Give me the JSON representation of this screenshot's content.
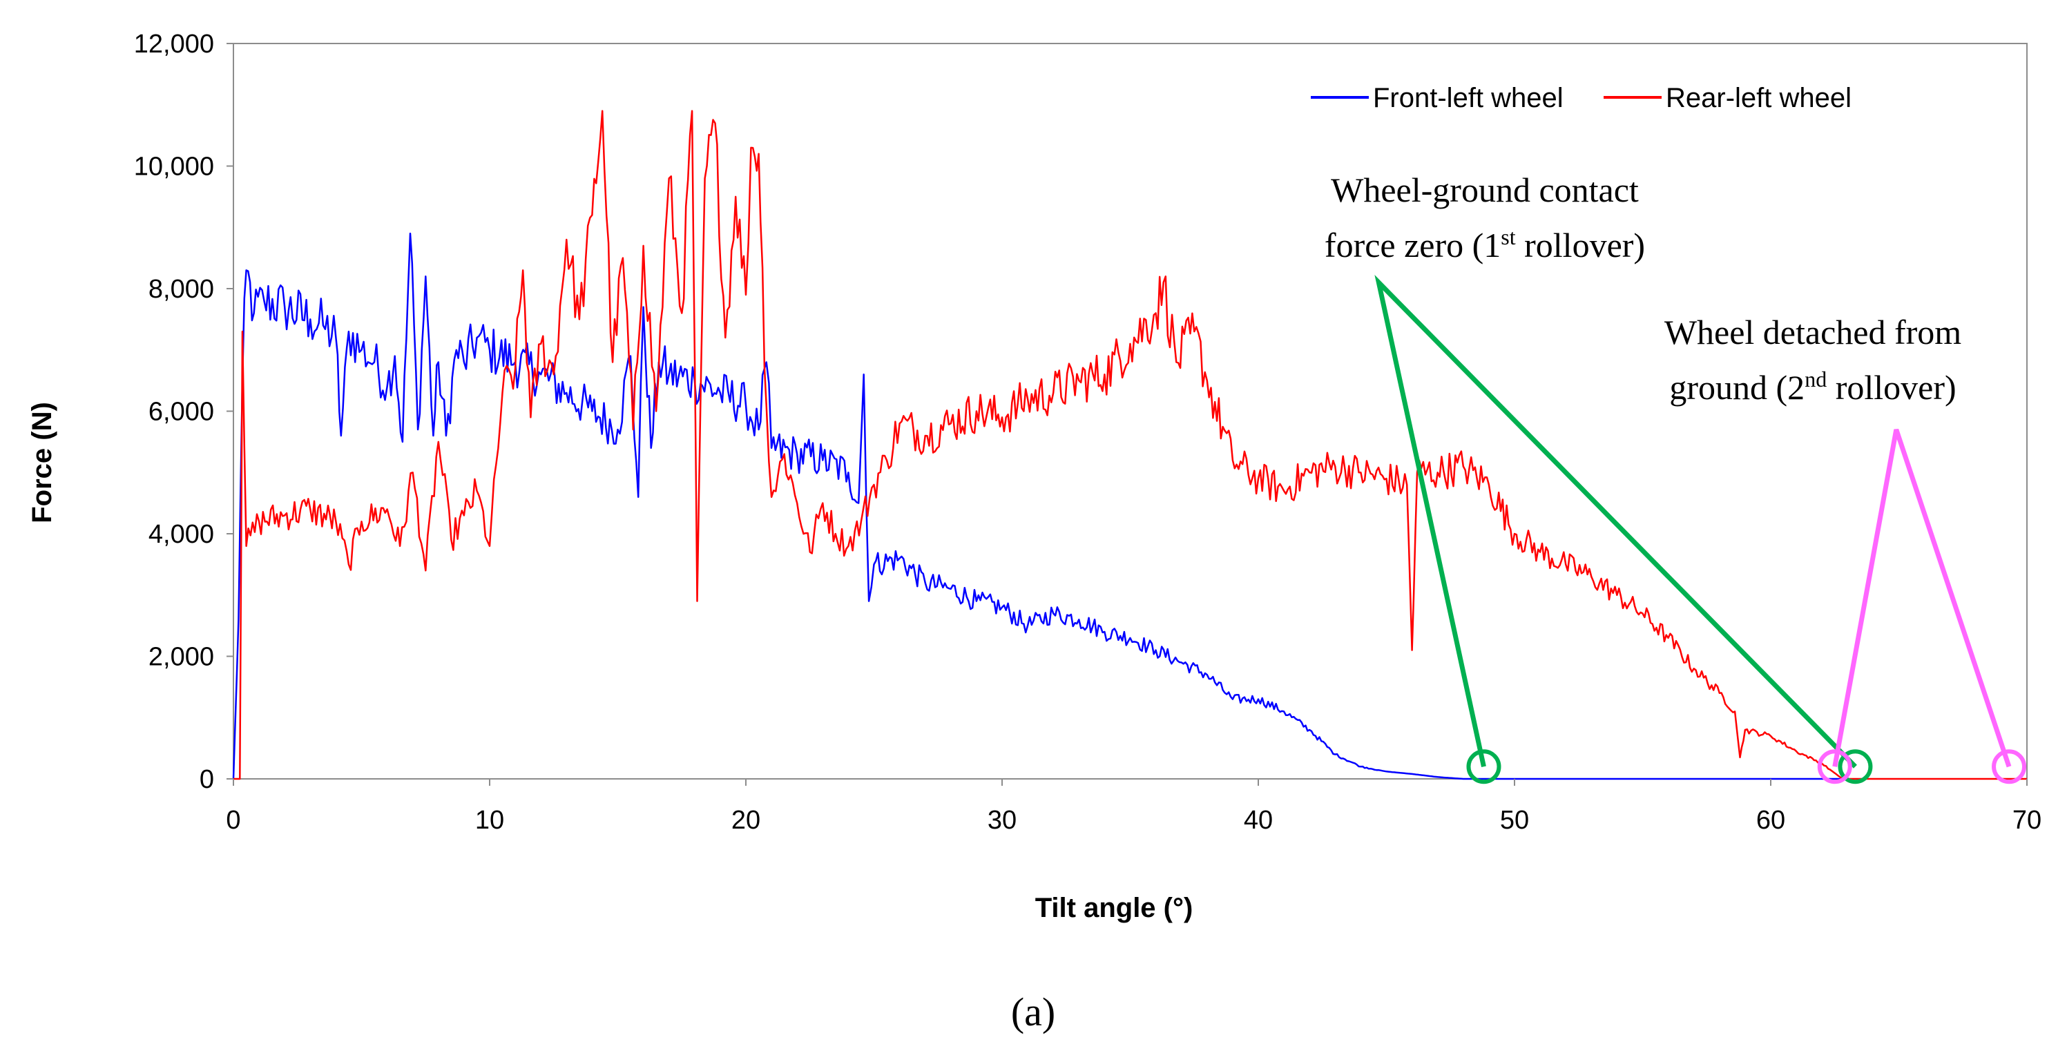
{
  "chart_data": {
    "type": "line",
    "title": "",
    "xlabel": "Tilt angle (°)",
    "ylabel": "Force (N)",
    "xlim": [
      0,
      70
    ],
    "ylim": [
      0,
      12000
    ],
    "x_ticks": [
      "0",
      "10",
      "20",
      "30",
      "40",
      "50",
      "60",
      "70"
    ],
    "y_ticks": [
      "0",
      "2,000",
      "4,000",
      "6,000",
      "8,000",
      "10,000",
      "12,000"
    ],
    "grid": false,
    "legend_position": "top-right",
    "series": [
      {
        "name": "Front-left wheel",
        "color": "#0000ff",
        "points": [
          [
            0,
            0
          ],
          [
            0.2,
            2600
          ],
          [
            0.35,
            6500
          ],
          [
            0.5,
            8300
          ],
          [
            0.8,
            7600
          ],
          [
            1.2,
            7800
          ],
          [
            2,
            7700
          ],
          [
            3,
            7500
          ],
          [
            3.5,
            7400
          ],
          [
            4,
            7200
          ],
          [
            4.2,
            5600
          ],
          [
            4.5,
            7300
          ],
          [
            5,
            7000
          ],
          [
            5.5,
            6800
          ],
          [
            6,
            6400
          ],
          [
            6.3,
            6900
          ],
          [
            6.6,
            5500
          ],
          [
            6.9,
            8900
          ],
          [
            7.2,
            5700
          ],
          [
            7.5,
            8200
          ],
          [
            7.8,
            5600
          ],
          [
            8,
            6800
          ],
          [
            8.3,
            5600
          ],
          [
            8.7,
            7000
          ],
          [
            9,
            6800
          ],
          [
            9.5,
            7200
          ],
          [
            10,
            7000
          ],
          [
            11,
            6800
          ],
          [
            12,
            6600
          ],
          [
            13,
            6300
          ],
          [
            14,
            6000
          ],
          [
            15,
            5700
          ],
          [
            15.5,
            6900
          ],
          [
            15.8,
            4600
          ],
          [
            16,
            7700
          ],
          [
            16.3,
            5400
          ],
          [
            16.6,
            6800
          ],
          [
            17,
            6600
          ],
          [
            18,
            6500
          ],
          [
            19,
            6300
          ],
          [
            20,
            6100
          ],
          [
            20.5,
            5700
          ],
          [
            20.8,
            6800
          ],
          [
            21,
            5400
          ],
          [
            22,
            5300
          ],
          [
            23,
            5200
          ],
          [
            24,
            5000
          ],
          [
            24.4,
            4500
          ],
          [
            24.6,
            6600
          ],
          [
            24.8,
            2900
          ],
          [
            25,
            3500
          ],
          [
            26,
            3600
          ],
          [
            27,
            3200
          ],
          [
            28,
            3100
          ],
          [
            29,
            2900
          ],
          [
            30,
            2800
          ],
          [
            31,
            2500
          ],
          [
            32,
            2700
          ],
          [
            33,
            2600
          ],
          [
            34,
            2400
          ],
          [
            35,
            2300
          ],
          [
            36,
            2100
          ],
          [
            37,
            1900
          ],
          [
            38,
            1700
          ],
          [
            39,
            1300
          ],
          [
            40,
            1300
          ],
          [
            41,
            1100
          ],
          [
            42,
            800
          ],
          [
            43,
            400
          ],
          [
            44,
            200
          ],
          [
            45,
            120
          ],
          [
            46,
            80
          ],
          [
            47,
            30
          ],
          [
            48,
            0
          ],
          [
            50,
            0
          ],
          [
            55,
            0
          ],
          [
            60,
            0
          ],
          [
            63,
            0
          ]
        ]
      },
      {
        "name": "Rear-left wheel",
        "color": "#ff0000",
        "points": [
          [
            0,
            0
          ],
          [
            0.25,
            0
          ],
          [
            0.35,
            7300
          ],
          [
            0.5,
            3800
          ],
          [
            1,
            4200
          ],
          [
            2,
            4300
          ],
          [
            3,
            4400
          ],
          [
            4,
            4200
          ],
          [
            4.5,
            3500
          ],
          [
            5,
            4200
          ],
          [
            6,
            4400
          ],
          [
            6.5,
            3800
          ],
          [
            7,
            5000
          ],
          [
            7.5,
            3400
          ],
          [
            8,
            5500
          ],
          [
            8.5,
            3900
          ],
          [
            9,
            4300
          ],
          [
            9.5,
            4700
          ],
          [
            10,
            3800
          ],
          [
            10.5,
            6300
          ],
          [
            11,
            6700
          ],
          [
            11.3,
            8300
          ],
          [
            11.6,
            5900
          ],
          [
            12,
            7100
          ],
          [
            12.5,
            6600
          ],
          [
            13,
            8800
          ],
          [
            13.5,
            7500
          ],
          [
            14,
            9200
          ],
          [
            14.4,
            10900
          ],
          [
            14.8,
            6800
          ],
          [
            15.2,
            8500
          ],
          [
            15.6,
            5700
          ],
          [
            16,
            8700
          ],
          [
            16.5,
            6000
          ],
          [
            17,
            9800
          ],
          [
            17.5,
            7600
          ],
          [
            17.9,
            10900
          ],
          [
            18.1,
            2900
          ],
          [
            18.4,
            9800
          ],
          [
            18.8,
            10700
          ],
          [
            19.2,
            7200
          ],
          [
            19.6,
            9500
          ],
          [
            20,
            7900
          ],
          [
            20.2,
            10300
          ],
          [
            20.5,
            10200
          ],
          [
            20.8,
            6100
          ],
          [
            21,
            4600
          ],
          [
            21.5,
            5300
          ],
          [
            22,
            4500
          ],
          [
            22.5,
            3700
          ],
          [
            23,
            4500
          ],
          [
            23.5,
            4000
          ],
          [
            24,
            3800
          ],
          [
            24.5,
            4200
          ],
          [
            25,
            4800
          ],
          [
            25.5,
            5200
          ],
          [
            26,
            5800
          ],
          [
            27,
            5600
          ],
          [
            28,
            5800
          ],
          [
            29,
            6000
          ],
          [
            30,
            5900
          ],
          [
            31,
            6200
          ],
          [
            32,
            6300
          ],
          [
            33,
            6500
          ],
          [
            34,
            6600
          ],
          [
            35,
            7100
          ],
          [
            36,
            7600
          ],
          [
            36.3,
            8100
          ],
          [
            36.8,
            6800
          ],
          [
            37.5,
            7300
          ],
          [
            38,
            6500
          ],
          [
            39,
            5200
          ],
          [
            40,
            4900
          ],
          [
            41,
            4700
          ],
          [
            42,
            5000
          ],
          [
            43,
            5100
          ],
          [
            44,
            5000
          ],
          [
            45,
            4900
          ],
          [
            45.8,
            4800
          ],
          [
            46,
            2100
          ],
          [
            46.2,
            5000
          ],
          [
            47,
            5000
          ],
          [
            48,
            5100
          ],
          [
            49,
            4800
          ],
          [
            50,
            4000
          ],
          [
            51,
            3700
          ],
          [
            52,
            3500
          ],
          [
            53,
            3300
          ],
          [
            54,
            3000
          ],
          [
            55,
            2700
          ],
          [
            56,
            2300
          ],
          [
            57,
            1800
          ],
          [
            58,
            1400
          ],
          [
            58.6,
            1100
          ],
          [
            58.8,
            350
          ],
          [
            59,
            800
          ],
          [
            60,
            700
          ],
          [
            61,
            450
          ],
          [
            62,
            250
          ],
          [
            62.8,
            0
          ],
          [
            63,
            0
          ],
          [
            65,
            0
          ],
          [
            70,
            0
          ]
        ]
      }
    ],
    "annotations": [
      {
        "id": "first-rollover",
        "lines": [
          {
            "text": "Wheel-ground contact",
            "sup": "",
            "after": ""
          },
          {
            "text": "force zero (1",
            "sup": "st",
            "after": " rollover)"
          }
        ],
        "color": "#00b050",
        "apex": [
          44.7,
          8100
        ],
        "circles": [
          [
            48.8,
            200
          ],
          [
            63.3,
            200
          ]
        ]
      },
      {
        "id": "second-rollover",
        "lines": [
          {
            "text": "Wheel detached from",
            "sup": "",
            "after": ""
          },
          {
            "text": "ground (2",
            "sup": "nd",
            "after": " rollover)"
          }
        ],
        "color": "#ff66ff",
        "apex": [
          64.9,
          5700
        ],
        "circles": [
          [
            62.5,
            200
          ],
          [
            69.3,
            200
          ]
        ]
      }
    ]
  },
  "caption": "(a)"
}
